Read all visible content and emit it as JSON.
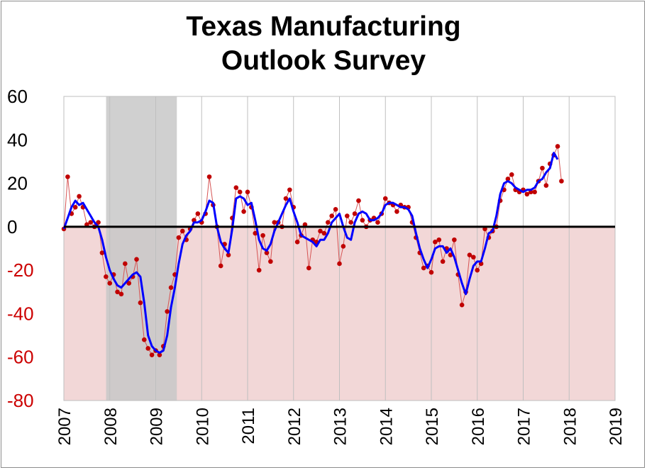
{
  "chart_data": {
    "type": "line",
    "title_lines": [
      "Texas Manufacturing",
      "Outlook Survey"
    ],
    "xlabel": "",
    "ylabel": "",
    "xlim": [
      2007,
      2019
    ],
    "ylim": [
      -80,
      60
    ],
    "x_ticks": [
      "2007",
      "2008",
      "2009",
      "2010",
      "2011",
      "2012",
      "2013",
      "2014",
      "2015",
      "2016",
      "2017",
      "2018",
      "2019"
    ],
    "y_ticks": [
      {
        "value": 60,
        "label": "60"
      },
      {
        "value": 40,
        "label": "40"
      },
      {
        "value": 20,
        "label": "20"
      },
      {
        "value": 0,
        "label": "0"
      },
      {
        "value": -20,
        "label": "-20"
      },
      {
        "value": -40,
        "label": "-40"
      },
      {
        "value": -60,
        "label": "-60"
      },
      {
        "value": -80,
        "label": "-80"
      }
    ],
    "grid": "vertical gridlines at each year",
    "legend": "none",
    "recession": {
      "start": 2007.92,
      "end": 2009.46
    },
    "colors": {
      "positive_tick_text": "#000000",
      "negative_tick_text": "#cc0000",
      "negative_region": "#f2d7d7",
      "recession_band": "#c8c8c8",
      "monthly_points": "#c00000",
      "monthly_line": "#d65454",
      "smoothed_line": "#0000ff",
      "zero_line": "#000000",
      "grid": "#bfbfbf"
    },
    "series": [
      {
        "style": "monthly markers",
        "start": 2007.0,
        "step": 0.08333,
        "values": [
          -1,
          23,
          6,
          9,
          14,
          9,
          1,
          2,
          0,
          2,
          -12,
          -23,
          -26,
          -22,
          -30,
          -31,
          -17,
          -26,
          -23,
          -15,
          -35,
          -52,
          -56,
          -59,
          -57,
          -59,
          -55,
          -39,
          -28,
          -22,
          -5,
          -2,
          -6,
          -1,
          3,
          6,
          2,
          6,
          23,
          10,
          0,
          -18,
          -8,
          -13,
          4,
          18,
          16,
          7,
          16,
          9,
          -3,
          -20,
          -4,
          -12,
          -16,
          2,
          2,
          0,
          13,
          17,
          9,
          -7,
          -4,
          1,
          -19,
          -6,
          -7,
          -2,
          -3,
          2,
          5,
          8,
          -17,
          -9,
          5,
          2,
          6,
          12,
          3,
          0,
          3,
          4,
          2,
          6,
          13,
          11,
          10,
          7,
          10,
          9,
          9,
          2,
          -5,
          -12,
          -19,
          -18,
          -21,
          -7,
          -6,
          -16,
          -10,
          -13,
          -6,
          -22,
          -36,
          -30,
          -13,
          -14,
          -20,
          -17,
          -1,
          -5,
          -2,
          0,
          12,
          17,
          22,
          24,
          17,
          16,
          17,
          15,
          16,
          16,
          21,
          27,
          19,
          29,
          33,
          37,
          21
        ]
      },
      {
        "style": "smoothed line",
        "start": 2007.0,
        "step": 0.08333,
        "values": [
          -1,
          4,
          9,
          12,
          10,
          11,
          8,
          5,
          2,
          0,
          -6,
          -14,
          -20,
          -24,
          -27,
          -28,
          -26,
          -24,
          -22,
          -21,
          -23,
          -35,
          -50,
          -55,
          -57,
          -58,
          -57,
          -50,
          -37,
          -28,
          -17,
          -8,
          -4,
          -2,
          2,
          2,
          3,
          7,
          12,
          11,
          0,
          -7,
          -10,
          -12,
          -1,
          13,
          14,
          13,
          10,
          11,
          3,
          -6,
          -10,
          -11,
          -8,
          -2,
          2,
          6,
          10,
          13,
          7,
          2,
          -4,
          -5,
          -6,
          -7,
          -9,
          -6,
          -6,
          -3,
          2,
          4,
          6,
          0,
          -5,
          -6,
          2,
          6,
          7,
          6,
          3,
          3,
          4,
          6,
          10,
          11,
          11,
          10,
          9,
          9,
          8,
          5,
          -3,
          -10,
          -15,
          -19,
          -15,
          -10,
          -9,
          -9,
          -12,
          -10,
          -14,
          -20,
          -26,
          -31,
          -24,
          -18,
          -16,
          -16,
          -10,
          -3,
          -2,
          5,
          15,
          20,
          21,
          20,
          18,
          17,
          16,
          17,
          17,
          18,
          21,
          22,
          25,
          27,
          34,
          31
        ]
      }
    ]
  }
}
